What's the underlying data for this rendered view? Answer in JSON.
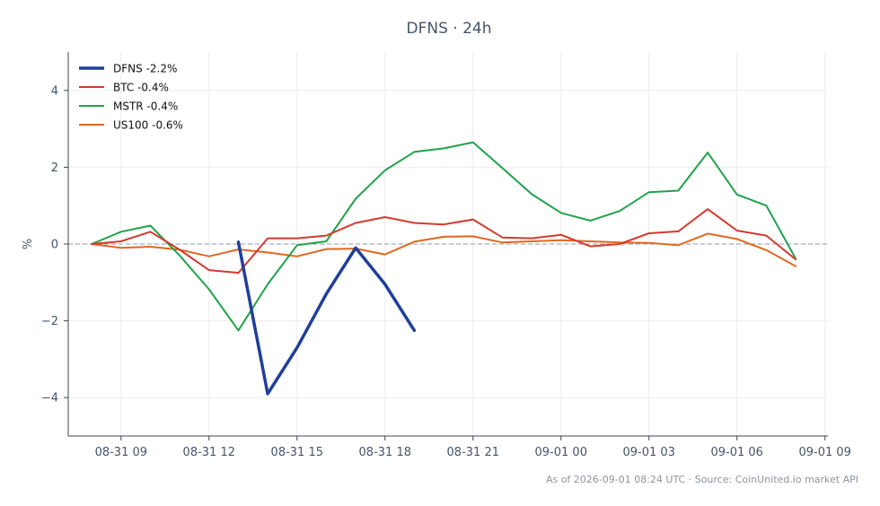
{
  "chart_data": {
    "type": "line",
    "title": "DFNS · 24h",
    "ylabel": "%",
    "xlabel": "",
    "ylim": [
      -5,
      5
    ],
    "yticks": [
      -4,
      -2,
      0,
      2,
      4
    ],
    "ytick_labels": [
      "−4",
      "−2",
      "0",
      "2",
      "4"
    ],
    "xlim": [
      7.2,
      33.1
    ],
    "xticks": [
      9,
      12,
      15,
      18,
      21,
      24,
      27,
      30,
      33
    ],
    "xtick_labels": [
      "08-31 09",
      "08-31 12",
      "08-31 15",
      "08-31 18",
      "08-31 21",
      "09-01 00",
      "09-01 03",
      "09-01 06",
      "09-01 09"
    ],
    "grid": true,
    "zero_line": true,
    "legend_position": "top-left",
    "series": [
      {
        "name": "DFNS -2.2%",
        "color": "#1f3f9a",
        "x": [
          13,
          14,
          15,
          16,
          17,
          18,
          19
        ],
        "values": [
          0.05,
          -3.9,
          -2.7,
          -1.3,
          -0.1,
          -1.05,
          -2.25
        ]
      },
      {
        "name": "BTC -0.4%",
        "color": "#d43a2f",
        "x": [
          8,
          9,
          10,
          11,
          12,
          13,
          14,
          15,
          16,
          17,
          18,
          19,
          20,
          21,
          22,
          23,
          24,
          25,
          26,
          27,
          28,
          29,
          30,
          31,
          32
        ],
        "values": [
          0,
          0.07,
          0.32,
          -0.15,
          -0.68,
          -0.75,
          0.15,
          0.15,
          0.22,
          0.55,
          0.7,
          0.55,
          0.51,
          0.64,
          0.17,
          0.15,
          0.24,
          -0.06,
          0.0,
          0.28,
          0.33,
          0.91,
          0.35,
          0.22,
          -0.4
        ]
      },
      {
        "name": "MSTR -0.4%",
        "color": "#1ea34a",
        "x": [
          8,
          9,
          10,
          11,
          12,
          13,
          14,
          15,
          16,
          17,
          18,
          19,
          20,
          21,
          22,
          23,
          24,
          25,
          26,
          27,
          28,
          29,
          30,
          31,
          32
        ],
        "values": [
          0,
          0.32,
          0.48,
          -0.3,
          -1.18,
          -2.25,
          -1.05,
          -0.03,
          0.07,
          1.18,
          1.92,
          2.4,
          2.49,
          2.65,
          1.98,
          1.3,
          0.81,
          0.61,
          0.86,
          1.35,
          1.39,
          2.38,
          1.29,
          1.0,
          -0.38
        ]
      },
      {
        "name": "US100 -0.6%",
        "color": "#e0681f",
        "x": [
          8,
          9,
          10,
          11,
          12,
          13,
          14,
          15,
          16,
          17,
          18,
          19,
          20,
          21,
          22,
          23,
          24,
          25,
          26,
          27,
          28,
          29,
          30,
          31,
          32
        ],
        "values": [
          0,
          -0.1,
          -0.07,
          -0.15,
          -0.32,
          -0.14,
          -0.22,
          -0.32,
          -0.13,
          -0.12,
          -0.27,
          0.06,
          0.19,
          0.2,
          0.04,
          0.07,
          0.1,
          0.07,
          0.04,
          0.03,
          -0.03,
          0.27,
          0.13,
          -0.16,
          -0.58
        ]
      }
    ]
  },
  "footer": {
    "note": "As of 2026-09-01 08:24 UTC · Source: CoinUnited.io market API"
  }
}
